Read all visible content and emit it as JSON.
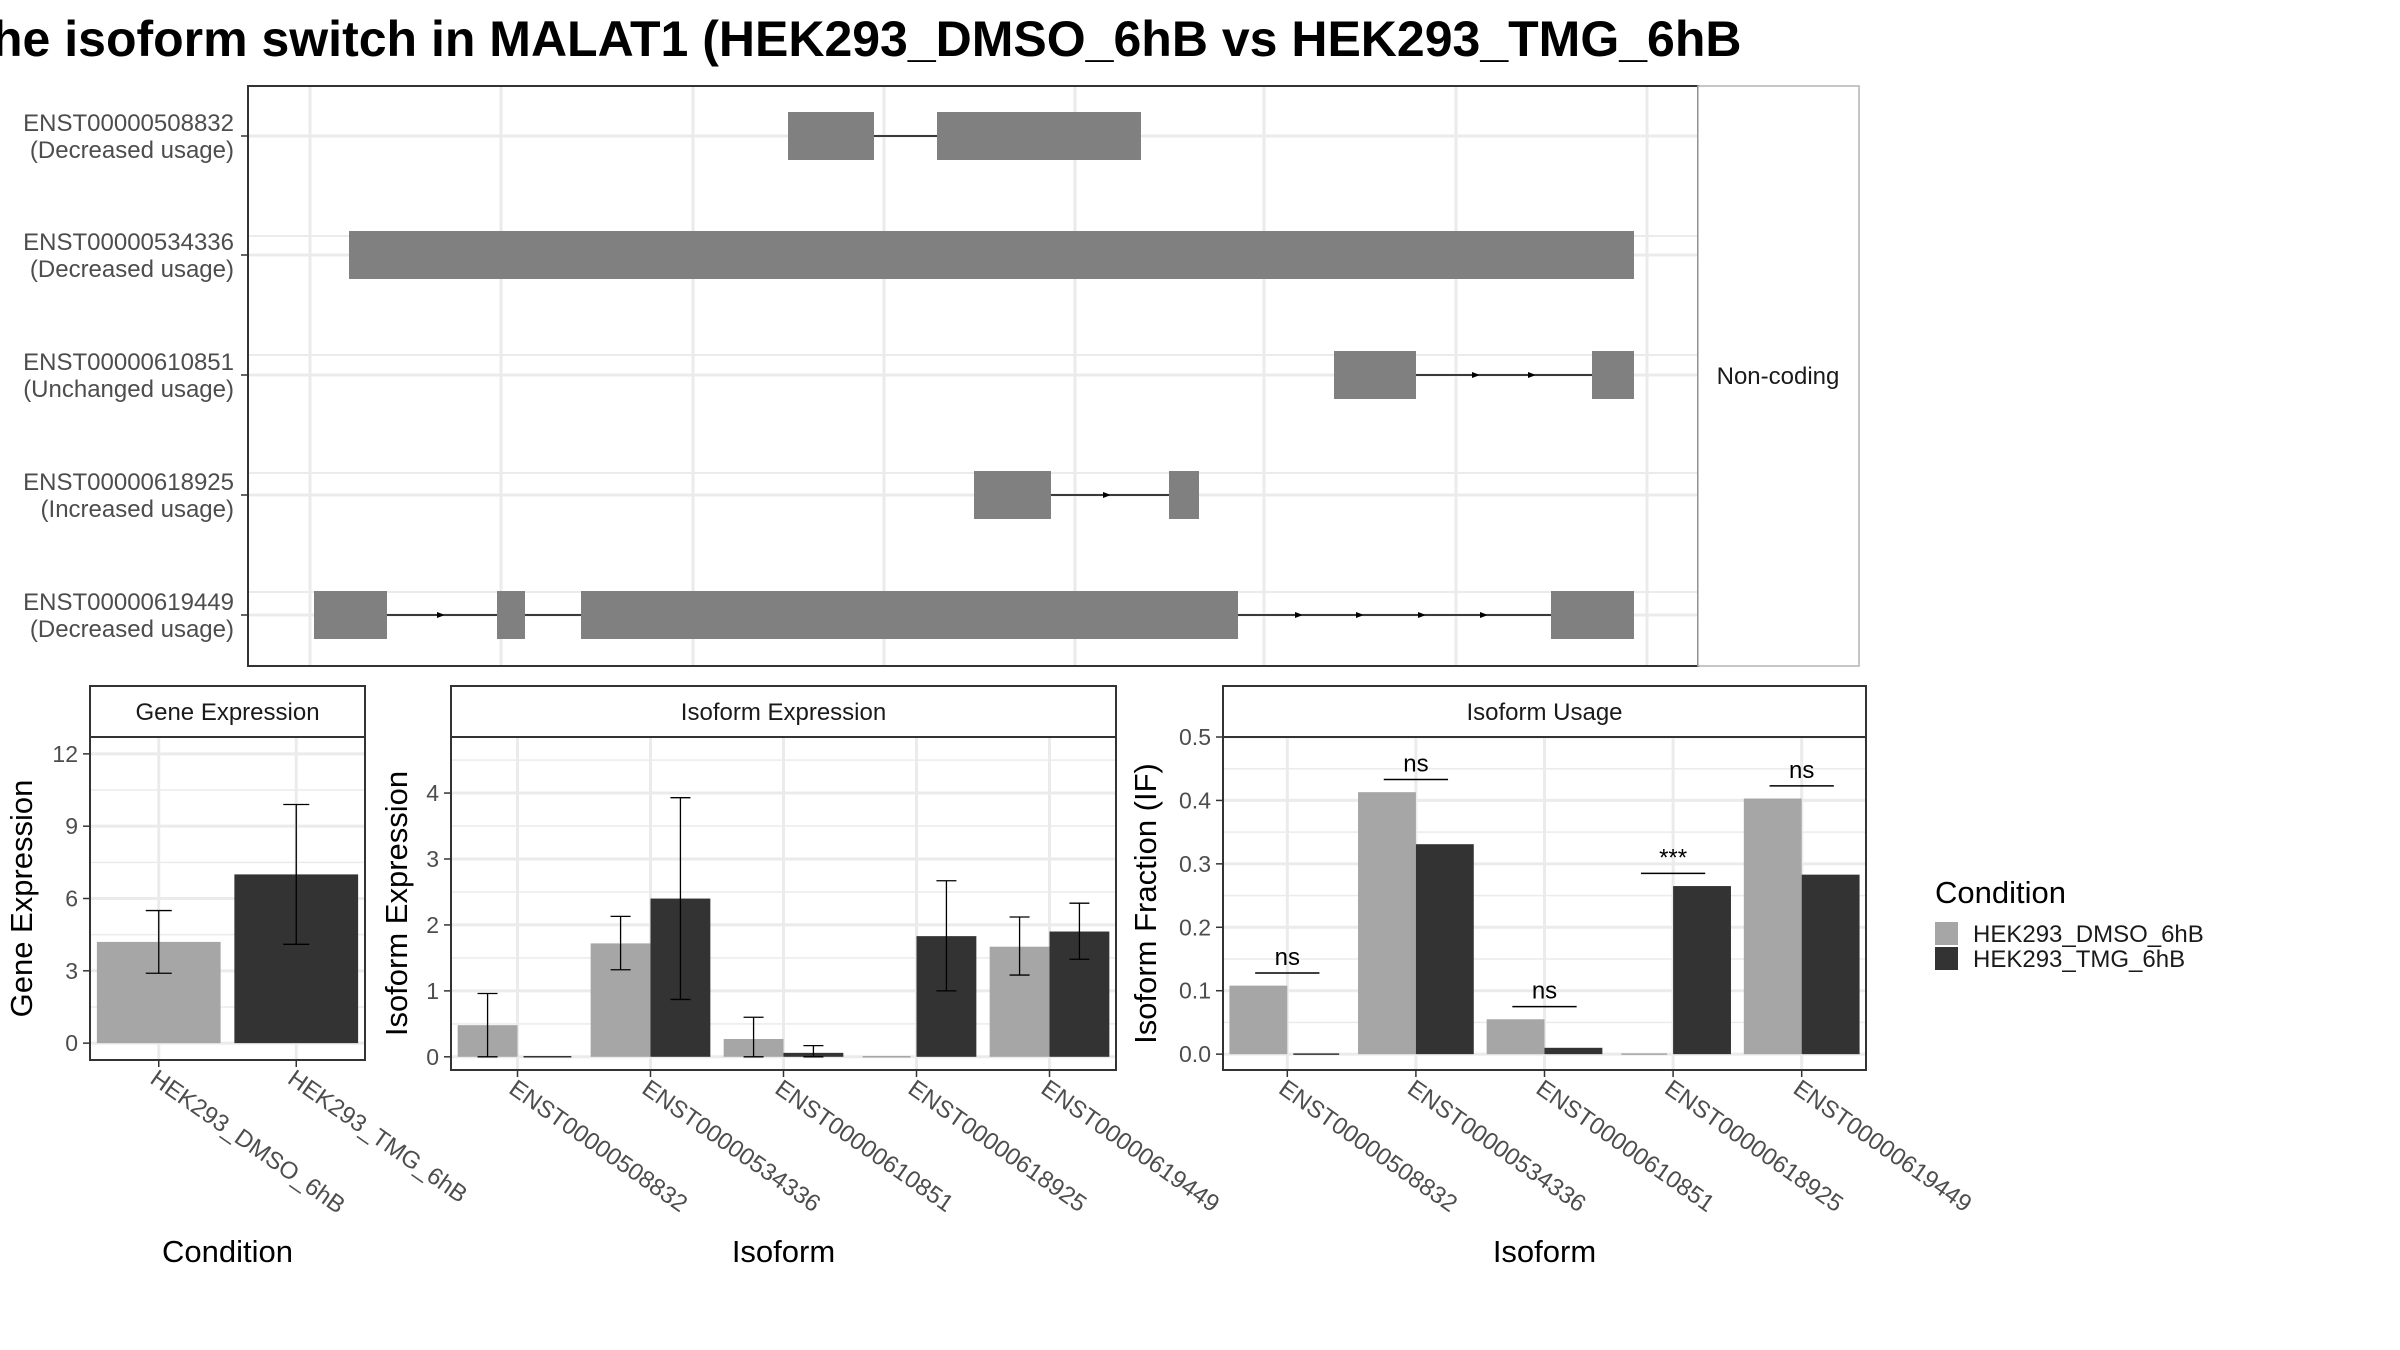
{
  "title": "he isoform switch in MALAT1 (HEK293_DMSO_6hB vs HEK293_TMG_6hB",
  "colors": {
    "dmso": "#a6a6a6",
    "tmg": "#333333",
    "exon": "#808080",
    "grid": "#ebebeb"
  },
  "structure": {
    "facet_label": "Non-coding",
    "transcripts": [
      {
        "id": "ENST00000508832",
        "usage": "(Decreased usage)"
      },
      {
        "id": "ENST00000534336",
        "usage": "(Decreased usage)"
      },
      {
        "id": "ENST00000610851",
        "usage": "(Unchanged usage)"
      },
      {
        "id": "ENST00000618925",
        "usage": "(Increased usage)"
      },
      {
        "id": "ENST00000619449",
        "usage": "(Decreased usage)"
      }
    ]
  },
  "legend": {
    "title": "Condition",
    "items": [
      "HEK293_DMSO_6hB",
      "HEK293_TMG_6hB"
    ]
  },
  "chart_data": [
    {
      "type": "bar",
      "panel": "Gene Expression",
      "xlabel": "Condition",
      "ylabel": "Gene Expression",
      "ylim": [
        -0.7,
        12.7
      ],
      "yticks": [
        0,
        3,
        6,
        9,
        12
      ],
      "categories": [
        "HEK293_DMSO_6hB",
        "HEK293_TMG_6hB"
      ],
      "values": [
        4.2,
        7.0
      ],
      "error_low": [
        2.9,
        4.1
      ],
      "error_high": [
        5.5,
        9.9
      ]
    },
    {
      "type": "bar",
      "panel": "Isoform Expression",
      "xlabel": "Isoform",
      "ylabel": "Isoform Expression",
      "ylim": [
        -0.2,
        4.85
      ],
      "yticks": [
        0,
        1,
        2,
        3,
        4
      ],
      "categories": [
        "ENST00000508832",
        "ENST00000534336",
        "ENST00000610851",
        "ENST00000618925",
        "ENST00000619449"
      ],
      "series": [
        {
          "name": "HEK293_DMSO_6hB",
          "values": [
            0.48,
            1.72,
            0.27,
            0.0,
            1.67
          ],
          "error_low": [
            0.0,
            1.32,
            0.0,
            0.0,
            1.24
          ],
          "error_high": [
            0.96,
            2.13,
            0.6,
            0.0,
            2.12
          ]
        },
        {
          "name": "HEK293_TMG_6hB",
          "values": [
            0.0,
            2.4,
            0.06,
            1.83,
            1.9
          ],
          "error_low": [
            0.0,
            0.87,
            0.0,
            1.0,
            1.48
          ],
          "error_high": [
            0.0,
            3.93,
            0.17,
            2.67,
            2.33
          ]
        }
      ]
    },
    {
      "type": "bar",
      "panel": "Isoform Usage",
      "xlabel": "Isoform",
      "ylabel": "Isoform Fraction (IF)",
      "ylim": [
        -0.025,
        0.5
      ],
      "yticks": [
        "0.0",
        "0.1",
        "0.2",
        "0.3",
        "0.4",
        "0.5"
      ],
      "categories": [
        "ENST00000508832",
        "ENST00000534336",
        "ENST00000610851",
        "ENST00000618925",
        "ENST00000619449"
      ],
      "series": [
        {
          "name": "HEK293_DMSO_6hB",
          "values": [
            0.108,
            0.413,
            0.055,
            0.0,
            0.403
          ]
        },
        {
          "name": "HEK293_TMG_6hB",
          "values": [
            0.0,
            0.331,
            0.01,
            0.265,
            0.283
          ]
        }
      ],
      "significance": [
        "ns",
        "ns",
        "ns",
        "***",
        "ns"
      ],
      "significance_y": [
        0.128,
        0.433,
        0.075,
        0.285,
        0.423
      ]
    }
  ]
}
